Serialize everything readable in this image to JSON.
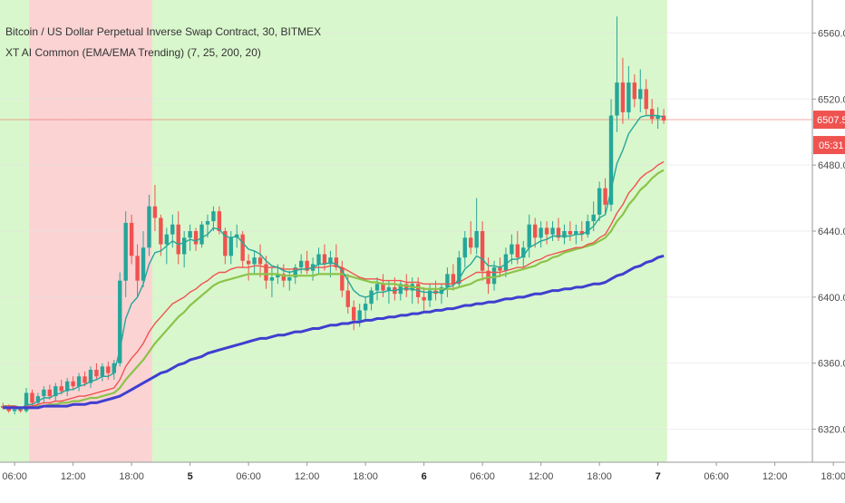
{
  "header": {
    "title": "Bitcoin / US Dollar Perpetual Inverse Swap Contract, 30, BITMEX",
    "indicator": "XT AI Common (EMA/EMA Trending) (7, 25, 200, 20)"
  },
  "price_tag": {
    "price": "6507.5",
    "countdown": "05:31"
  },
  "colors": {
    "up_candle": "#26a69a",
    "down_candle": "#ef5350",
    "bg_green": "#d9f7cc",
    "bg_red": "#fbd3d3",
    "bg_orange": "#fbe2cf",
    "bg_gray": "#cfdcc8",
    "ema7": "#26a69a",
    "ema25": "#ef5350",
    "ema200": "#3f3fd0",
    "ma20": "#8bc34a",
    "price_line": "#ef5350"
  },
  "chart_data": {
    "type": "candlestick",
    "title": "Bitcoin / US Dollar Perpetual Inverse Swap Contract, 30, BITMEX",
    "ylim": [
      6300,
      6580
    ],
    "y_ticks": [
      "6560.0",
      "6520.0",
      "6480.0",
      "6440.0",
      "6400.0",
      "6360.0",
      "6320.0"
    ],
    "y_tick_values": [
      6560,
      6520,
      6480,
      6440,
      6400,
      6360,
      6320
    ],
    "x_ticks": [
      {
        "label": "06:00",
        "bold": false,
        "bar": 2
      },
      {
        "label": "12:00",
        "bold": false,
        "bar": 12
      },
      {
        "label": "18:00",
        "bold": false,
        "bar": 22
      },
      {
        "label": "5",
        "bold": true,
        "bar": 32
      },
      {
        "label": "06:00",
        "bold": false,
        "bar": 42
      },
      {
        "label": "12:00",
        "bold": false,
        "bar": 52
      },
      {
        "label": "18:00",
        "bold": false,
        "bar": 62
      },
      {
        "label": "6",
        "bold": true,
        "bar": 72
      },
      {
        "label": "06:00",
        "bold": false,
        "bar": 82
      },
      {
        "label": "12:00",
        "bold": false,
        "bar": 92
      },
      {
        "label": "18:00",
        "bold": false,
        "bar": 102
      },
      {
        "label": "7",
        "bold": true,
        "bar": 112
      },
      {
        "label": "06:00",
        "bold": false,
        "bar": 122
      },
      {
        "label": "12:00",
        "bold": false,
        "bar": 132
      },
      {
        "label": "18:00",
        "bold": false,
        "bar": 142
      }
    ],
    "current_price": 6507.5,
    "candles": [
      [
        6334,
        6336,
        6332,
        6333
      ],
      [
        6333,
        6335,
        6330,
        6331
      ],
      [
        6331,
        6334,
        6329,
        6332
      ],
      [
        6332,
        6334,
        6330,
        6331
      ],
      [
        6331,
        6345,
        6330,
        6342
      ],
      [
        6342,
        6344,
        6334,
        6336
      ],
      [
        6336,
        6342,
        6333,
        6340
      ],
      [
        6340,
        6346,
        6336,
        6344
      ],
      [
        6344,
        6347,
        6338,
        6340
      ],
      [
        6340,
        6348,
        6337,
        6346
      ],
      [
        6346,
        6350,
        6341,
        6343
      ],
      [
        6343,
        6351,
        6340,
        6349
      ],
      [
        6349,
        6352,
        6344,
        6346
      ],
      [
        6346,
        6354,
        6343,
        6352
      ],
      [
        6352,
        6355,
        6346,
        6348
      ],
      [
        6348,
        6358,
        6345,
        6356
      ],
      [
        6356,
        6360,
        6350,
        6352
      ],
      [
        6352,
        6360,
        6349,
        6358
      ],
      [
        6358,
        6361,
        6350,
        6354
      ],
      [
        6354,
        6362,
        6350,
        6360
      ],
      [
        6360,
        6415,
        6358,
        6410
      ],
      [
        6410,
        6452,
        6400,
        6445
      ],
      [
        6445,
        6450,
        6420,
        6425
      ],
      [
        6425,
        6432,
        6400,
        6410
      ],
      [
        6410,
        6440,
        6406,
        6430
      ],
      [
        6430,
        6462,
        6425,
        6455
      ],
      [
        6455,
        6468,
        6440,
        6448
      ],
      [
        6448,
        6450,
        6425,
        6432
      ],
      [
        6432,
        6442,
        6420,
        6438
      ],
      [
        6438,
        6450,
        6430,
        6444
      ],
      [
        6444,
        6452,
        6420,
        6426
      ],
      [
        6426,
        6440,
        6418,
        6436
      ],
      [
        6436,
        6444,
        6428,
        6440
      ],
      [
        6440,
        6442,
        6428,
        6432
      ],
      [
        6432,
        6446,
        6430,
        6444
      ],
      [
        6444,
        6450,
        6436,
        6446
      ],
      [
        6446,
        6455,
        6440,
        6452
      ],
      [
        6452,
        6455,
        6438,
        6440
      ],
      [
        6440,
        6442,
        6420,
        6425
      ],
      [
        6425,
        6440,
        6420,
        6436
      ],
      [
        6436,
        6444,
        6430,
        6438
      ],
      [
        6438,
        6440,
        6418,
        6422
      ],
      [
        6422,
        6426,
        6410,
        6420
      ],
      [
        6420,
        6428,
        6414,
        6424
      ],
      [
        6424,
        6432,
        6412,
        6420
      ],
      [
        6420,
        6425,
        6405,
        6410
      ],
      [
        6410,
        6418,
        6400,
        6412
      ],
      [
        6412,
        6420,
        6408,
        6414
      ],
      [
        6414,
        6420,
        6406,
        6410
      ],
      [
        6410,
        6416,
        6404,
        6412
      ],
      [
        6412,
        6420,
        6408,
        6418
      ],
      [
        6418,
        6426,
        6414,
        6422
      ],
      [
        6422,
        6428,
        6414,
        6416
      ],
      [
        6416,
        6424,
        6410,
        6420
      ],
      [
        6420,
        6430,
        6414,
        6426
      ],
      [
        6426,
        6432,
        6416,
        6420
      ],
      [
        6420,
        6428,
        6412,
        6424
      ],
      [
        6424,
        6432,
        6416,
        6418
      ],
      [
        6418,
        6422,
        6400,
        6404
      ],
      [
        6404,
        6414,
        6390,
        6394
      ],
      [
        6394,
        6398,
        6380,
        6386
      ],
      [
        6386,
        6396,
        6382,
        6392
      ],
      [
        6392,
        6400,
        6386,
        6396
      ],
      [
        6396,
        6406,
        6392,
        6404
      ],
      [
        6404,
        6412,
        6398,
        6408
      ],
      [
        6408,
        6414,
        6400,
        6404
      ],
      [
        6404,
        6410,
        6396,
        6406
      ],
      [
        6406,
        6412,
        6398,
        6402
      ],
      [
        6402,
        6410,
        6398,
        6408
      ],
      [
        6408,
        6414,
        6400,
        6404
      ],
      [
        6404,
        6412,
        6396,
        6408
      ],
      [
        6408,
        6412,
        6396,
        6400
      ],
      [
        6400,
        6406,
        6392,
        6398
      ],
      [
        6398,
        6408,
        6394,
        6404
      ],
      [
        6404,
        6410,
        6398,
        6402
      ],
      [
        6402,
        6408,
        6396,
        6406
      ],
      [
        6406,
        6418,
        6400,
        6414
      ],
      [
        6414,
        6420,
        6404,
        6408
      ],
      [
        6408,
        6428,
        6406,
        6424
      ],
      [
        6424,
        6440,
        6418,
        6436
      ],
      [
        6436,
        6446,
        6426,
        6430
      ],
      [
        6430,
        6460,
        6426,
        6440
      ],
      [
        6440,
        6446,
        6410,
        6416
      ],
      [
        6416,
        6424,
        6402,
        6408
      ],
      [
        6408,
        6422,
        6404,
        6418
      ],
      [
        6418,
        6424,
        6412,
        6416
      ],
      [
        6416,
        6430,
        6412,
        6426
      ],
      [
        6426,
        6438,
        6420,
        6432
      ],
      [
        6432,
        6440,
        6420,
        6424
      ],
      [
        6424,
        6434,
        6418,
        6430
      ],
      [
        6430,
        6450,
        6424,
        6444
      ],
      [
        6444,
        6448,
        6430,
        6436
      ],
      [
        6436,
        6446,
        6430,
        6442
      ],
      [
        6442,
        6446,
        6432,
        6438
      ],
      [
        6438,
        6446,
        6434,
        6442
      ],
      [
        6442,
        6448,
        6434,
        6436
      ],
      [
        6436,
        6444,
        6432,
        6440
      ],
      [
        6440,
        6446,
        6434,
        6438
      ],
      [
        6438,
        6444,
        6432,
        6440
      ],
      [
        6440,
        6446,
        6434,
        6438
      ],
      [
        6438,
        6450,
        6436,
        6446
      ],
      [
        6446,
        6458,
        6440,
        6450
      ],
      [
        6450,
        6470,
        6446,
        6466
      ],
      [
        6466,
        6472,
        6450,
        6456
      ],
      [
        6456,
        6520,
        6452,
        6510
      ],
      [
        6510,
        6570,
        6500,
        6530
      ],
      [
        6530,
        6545,
        6505,
        6512
      ],
      [
        6512,
        6540,
        6508,
        6530
      ],
      [
        6530,
        6535,
        6515,
        6520
      ],
      [
        6520,
        6538,
        6512,
        6526
      ],
      [
        6526,
        6532,
        6510,
        6514
      ],
      [
        6514,
        6520,
        6505,
        6508
      ],
      [
        6508,
        6515,
        6502,
        6510
      ],
      [
        6510,
        6514,
        6505,
        6507
      ]
    ],
    "ema7": [
      6334,
      6333,
      6333,
      6332,
      6335,
      6335,
      6337,
      6339,
      6339,
      6341,
      6342,
      6344,
      6344,
      6346,
      6347,
      6349,
      6350,
      6352,
      6352,
      6354,
      6368,
      6387,
      6396,
      6400,
      6408,
      6420,
      6427,
      6428,
      6431,
      6434,
      6432,
      6433,
      6435,
      6434,
      6436,
      6438,
      6442,
      6441,
      6437,
      6436,
      6437,
      6433,
      6429,
      6428,
      6426,
      6422,
      6419,
      6418,
      6416,
      6415,
      6416,
      6417,
      6417,
      6418,
      6420,
      6420,
      6421,
      6420,
      6416,
      6410,
      6404,
      6401,
      6400,
      6401,
      6403,
      6403,
      6404,
      6404,
      6405,
      6405,
      6405,
      6404,
      6403,
      6403,
      6403,
      6403,
      6406,
      6407,
      6411,
      6417,
      6420,
      6425,
      6423,
      6419,
      6419,
      6418,
      6420,
      6423,
      6423,
      6425,
      6430,
      6432,
      6434,
      6435,
      6437,
      6437,
      6437,
      6437,
      6438,
      6438,
      6440,
      6443,
      6448,
      6450,
      6465,
      6481,
      6489,
      6499,
      6504,
      6509,
      6510,
      6510,
      6510,
      6509
    ],
    "ema25": [
      6334,
      6334,
      6334,
      6333,
      6334,
      6334,
      6335,
      6336,
      6336,
      6337,
      6337,
      6338,
      6339,
      6340,
      6340,
      6341,
      6342,
      6343,
      6344,
      6345,
      6350,
      6358,
      6363,
      6367,
      6372,
      6379,
      6384,
      6388,
      6392,
      6396,
      6398,
      6400,
      6403,
      6405,
      6408,
      6410,
      6413,
      6415,
      6415,
      6417,
      6418,
      6418,
      6418,
      6419,
      6419,
      6418,
      6418,
      6418,
      6417,
      6417,
      6417,
      6417,
      6417,
      6418,
      6418,
      6418,
      6419,
      6419,
      6418,
      6416,
      6414,
      6412,
      6411,
      6411,
      6411,
      6410,
      6410,
      6410,
      6410,
      6409,
      6409,
      6409,
      6408,
      6408,
      6408,
      6408,
      6408,
      6408,
      6409,
      6411,
      6413,
      6415,
      6415,
      6415,
      6415,
      6415,
      6416,
      6417,
      6418,
      6418,
      6420,
      6422,
      6423,
      6425,
      6426,
      6427,
      6428,
      6429,
      6430,
      6430,
      6432,
      6433,
      6436,
      6438,
      6444,
      6451,
      6456,
      6463,
      6467,
      6472,
      6475,
      6477,
      6480,
      6482
    ],
    "ma20": [
      6334,
      6334,
      6334,
      6333,
      6333,
      6333,
      6334,
      6334,
      6335,
      6335,
      6336,
      6336,
      6337,
      6337,
      6338,
      6339,
      6339,
      6340,
      6341,
      6342,
      6345,
      6350,
      6354,
      6358,
      6362,
      6367,
      6372,
      6376,
      6380,
      6384,
      6388,
      6391,
      6395,
      6398,
      6401,
      6404,
      6407,
      6409,
      6410,
      6411,
      6412,
      6413,
      6414,
      6414,
      6414,
      6414,
      6414,
      6414,
      6413,
      6413,
      6413,
      6413,
      6413,
      6413,
      6414,
      6414,
      6414,
      6414,
      6414,
      6413,
      6412,
      6411,
      6410,
      6409,
      6409,
      6408,
      6408,
      6408,
      6407,
      6407,
      6406,
      6406,
      6405,
      6405,
      6405,
      6405,
      6405,
      6405,
      6406,
      6407,
      6408,
      6410,
      6411,
      6412,
      6412,
      6413,
      6414,
      6415,
      6416,
      6417,
      6418,
      6419,
      6421,
      6422,
      6424,
      6425,
      6427,
      6428,
      6429,
      6430,
      6431,
      6432,
      6434,
      6436,
      6440,
      6446,
      6450,
      6456,
      6460,
      6465,
      6468,
      6472,
      6475,
      6477
    ],
    "ema200": [
      6333,
      6333,
      6333,
      6333,
      6333,
      6333,
      6333,
      6334,
      6334,
      6334,
      6334,
      6334,
      6335,
      6335,
      6335,
      6336,
      6336,
      6337,
      6338,
      6339,
      6340,
      6342,
      6344,
      6346,
      6348,
      6350,
      6352,
      6354,
      6355,
      6357,
      6359,
      6360,
      6362,
      6363,
      6364,
      6366,
      6367,
      6368,
      6369,
      6370,
      6371,
      6372,
      6373,
      6374,
      6375,
      6375,
      6376,
      6377,
      6377,
      6378,
      6379,
      6379,
      6380,
      6381,
      6381,
      6382,
      6383,
      6383,
      6384,
      6384,
      6385,
      6385,
      6386,
      6386,
      6387,
      6387,
      6388,
      6388,
      6389,
      6389,
      6390,
      6390,
      6391,
      6391,
      6392,
      6392,
      6393,
      6393,
      6394,
      6395,
      6395,
      6396,
      6396,
      6397,
      6397,
      6398,
      6399,
      6399,
      6400,
      6400,
      6401,
      6402,
      6402,
      6403,
      6404,
      6404,
      6405,
      6405,
      6406,
      6406,
      6407,
      6408,
      6408,
      6409,
      6411,
      6413,
      6414,
      6416,
      6418,
      6419,
      6421,
      6422,
      6424,
      6425
    ],
    "background": "GGGGGRRRRRRRRRRRRRRRRRRRRRGGGGGGGGGGGGGGGGGGGGGGGGGGGGGGGGGGGGGGGGGGGGGGGGGGGGGGGGGGGGGGGGGGGGGGGGGGGGGGGGGGGGGGG"
  }
}
